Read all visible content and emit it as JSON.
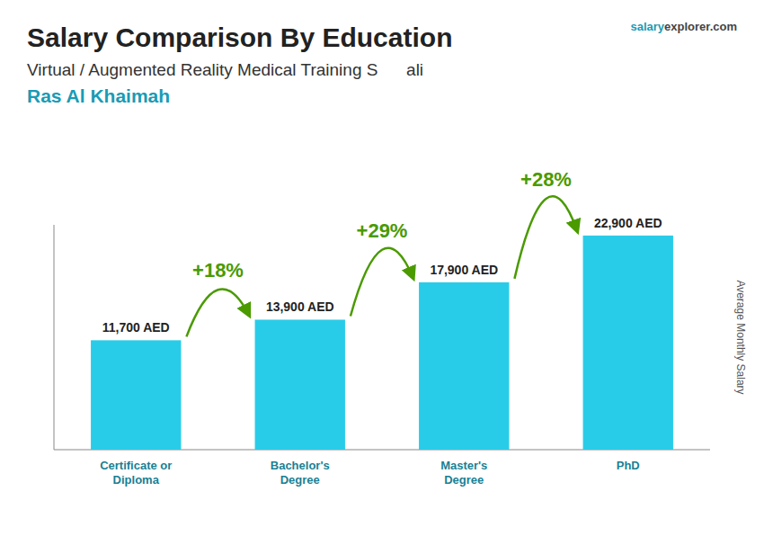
{
  "chart_data": {
    "type": "bar",
    "title": "Salary Comparison By Education",
    "subtitle": [
      "Virtual / Augmented Reality Medical Training S      ali",
      "Ras Al Khaimah"
    ],
    "source": [
      "salary",
      "explorer.com"
    ],
    "ylabel": "Average Monthly Salary",
    "categories": [
      "Certificate or\nDiploma",
      "Bachelor's\nDegree",
      "Master's\nDegree",
      "PhD"
    ],
    "values": [
      11700,
      13900,
      17900,
      22900
    ],
    "value_labels": [
      "11,700 AED",
      "13,900 AED",
      "17,900 AED",
      "22,900 AED"
    ],
    "data_labels": true,
    "annotations": [
      "+18%",
      "+29%",
      "+28%"
    ],
    "color": "#29cce8",
    "ylim": [
      0,
      24045
    ],
    "tick_labels": false
  }
}
